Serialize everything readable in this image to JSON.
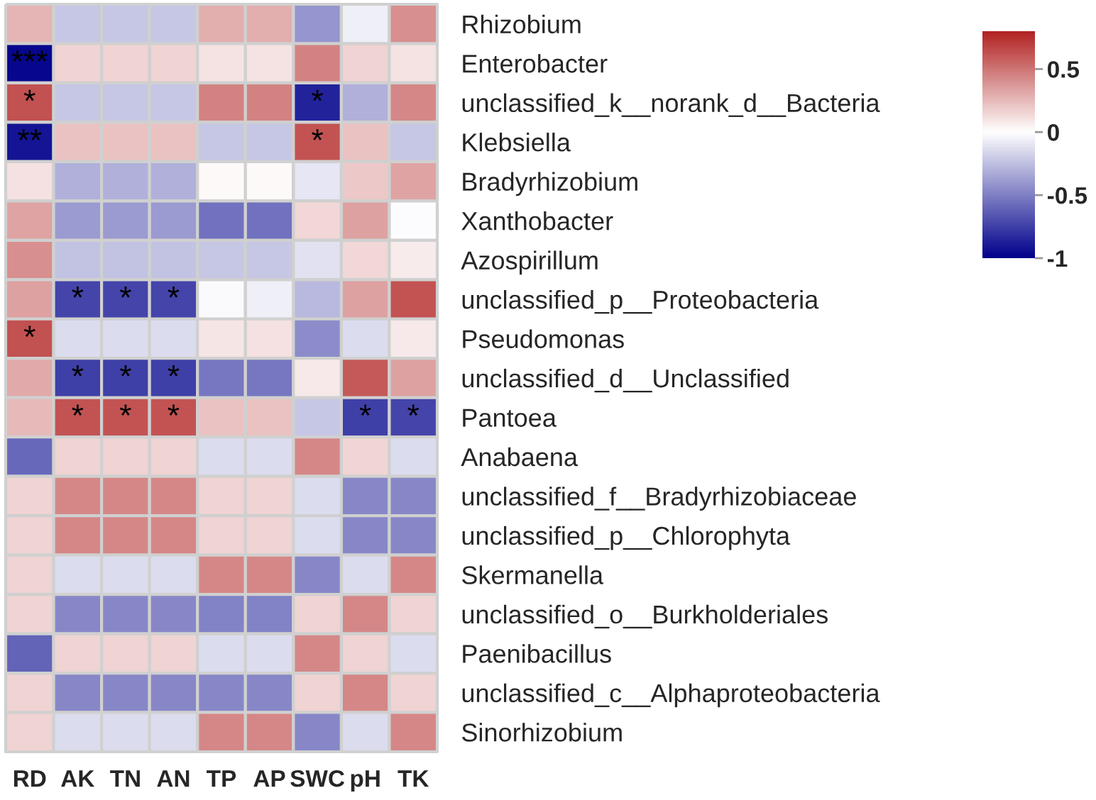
{
  "chart_data": {
    "type": "heatmap",
    "categories": [
      "RD",
      "AK",
      "TN",
      "AN",
      "TP",
      "AP",
      "SWC",
      "pH",
      "TK"
    ],
    "y_categories": [
      "Rhizobium",
      "Enterobacter",
      "unclassified_k__norank_d__Bacteria",
      "Klebsiella",
      "Bradyrhizobium",
      "Xanthobacter",
      "Azospirillum",
      "unclassified_p__Proteobacteria",
      "Pseudomonas",
      "unclassified_d__Unclassified",
      "Pantoea",
      "Anabaena",
      "unclassified_f__Bradyrhizobiaceae",
      "unclassified_p__Chlorophyta",
      "Skermanella",
      "unclassified_o__Burkholderiales",
      "Paenibacillus",
      "unclassified_c__Alphaproteobacteria",
      "Sinorhizobium"
    ],
    "cells": [
      [
        0.27,
        -0.22,
        -0.22,
        -0.22,
        0.29,
        0.29,
        -0.41,
        -0.06,
        0.4
      ],
      [
        -0.97,
        0.16,
        0.16,
        0.16,
        0.1,
        0.1,
        0.45,
        0.16,
        0.1
      ],
      [
        0.63,
        -0.22,
        -0.22,
        -0.22,
        0.45,
        0.45,
        -0.86,
        -0.31,
        0.43
      ],
      [
        -0.92,
        0.22,
        0.22,
        0.22,
        -0.22,
        -0.22,
        0.62,
        0.22,
        -0.22
      ],
      [
        0.11,
        -0.31,
        -0.31,
        -0.31,
        0.02,
        0.02,
        -0.1,
        0.2,
        0.33
      ],
      [
        0.33,
        -0.39,
        -0.39,
        -0.39,
        -0.55,
        -0.55,
        0.14,
        0.34,
        -0.01
      ],
      [
        0.4,
        -0.24,
        -0.24,
        -0.24,
        -0.22,
        -0.22,
        -0.12,
        0.14,
        0.07
      ],
      [
        0.34,
        -0.73,
        -0.73,
        -0.73,
        -0.02,
        -0.06,
        -0.27,
        0.34,
        0.62
      ],
      [
        0.63,
        -0.14,
        -0.14,
        -0.14,
        0.09,
        0.11,
        -0.45,
        -0.14,
        0.08
      ],
      [
        0.31,
        -0.75,
        -0.75,
        -0.75,
        -0.53,
        -0.53,
        0.08,
        0.6,
        0.34
      ],
      [
        0.25,
        0.62,
        0.62,
        0.62,
        0.22,
        0.22,
        -0.22,
        -0.75,
        -0.73
      ],
      [
        -0.59,
        0.16,
        0.16,
        0.16,
        -0.14,
        -0.14,
        0.43,
        0.15,
        -0.14
      ],
      [
        0.16,
        0.43,
        0.43,
        0.43,
        0.16,
        0.16,
        -0.14,
        -0.47,
        -0.47
      ],
      [
        0.16,
        0.43,
        0.43,
        0.43,
        0.16,
        0.16,
        -0.14,
        -0.47,
        -0.47
      ],
      [
        0.16,
        -0.14,
        -0.14,
        -0.14,
        0.43,
        0.43,
        -0.47,
        -0.14,
        0.43
      ],
      [
        0.16,
        -0.47,
        -0.47,
        -0.47,
        -0.49,
        -0.49,
        0.16,
        0.43,
        0.16
      ],
      [
        -0.61,
        0.16,
        0.16,
        0.16,
        -0.14,
        -0.14,
        0.43,
        0.16,
        -0.14
      ],
      [
        0.16,
        -0.47,
        -0.47,
        -0.47,
        -0.47,
        -0.47,
        0.16,
        0.43,
        0.16
      ],
      [
        0.16,
        -0.14,
        -0.14,
        -0.14,
        0.43,
        0.43,
        -0.47,
        -0.14,
        0.43
      ]
    ],
    "cell_labels": [
      [
        null,
        null,
        null,
        null,
        null,
        null,
        null,
        null,
        null
      ],
      [
        "***",
        null,
        null,
        null,
        null,
        null,
        null,
        null,
        null
      ],
      [
        "*",
        null,
        null,
        null,
        null,
        null,
        "*",
        null,
        null
      ],
      [
        "**",
        null,
        null,
        null,
        null,
        null,
        "*",
        null,
        null
      ],
      [
        null,
        null,
        null,
        null,
        null,
        null,
        null,
        null,
        null
      ],
      [
        null,
        null,
        null,
        null,
        null,
        null,
        null,
        null,
        null
      ],
      [
        null,
        null,
        null,
        null,
        null,
        null,
        null,
        null,
        null
      ],
      [
        null,
        "*",
        "*",
        "*",
        null,
        null,
        null,
        null,
        null
      ],
      [
        "*",
        null,
        null,
        null,
        null,
        null,
        null,
        null,
        null
      ],
      [
        null,
        "*",
        "*",
        "*",
        null,
        null,
        null,
        null,
        null
      ],
      [
        null,
        "*",
        "*",
        "*",
        null,
        null,
        null,
        "*",
        "*"
      ],
      [
        null,
        null,
        null,
        null,
        null,
        null,
        null,
        null,
        null
      ],
      [
        null,
        null,
        null,
        null,
        null,
        null,
        null,
        null,
        null
      ],
      [
        null,
        null,
        null,
        null,
        null,
        null,
        null,
        null,
        null
      ],
      [
        null,
        null,
        null,
        null,
        null,
        null,
        null,
        null,
        null
      ],
      [
        null,
        null,
        null,
        null,
        null,
        null,
        null,
        null,
        null
      ],
      [
        null,
        null,
        null,
        null,
        null,
        null,
        null,
        null,
        null
      ],
      [
        null,
        null,
        null,
        null,
        null,
        null,
        null,
        null,
        null
      ],
      [
        null,
        null,
        null,
        null,
        null,
        null,
        null,
        null,
        null
      ]
    ],
    "clim": [
      -1,
      0.8
    ],
    "cticks": [
      -1,
      -0.5,
      0,
      0.5
    ]
  }
}
